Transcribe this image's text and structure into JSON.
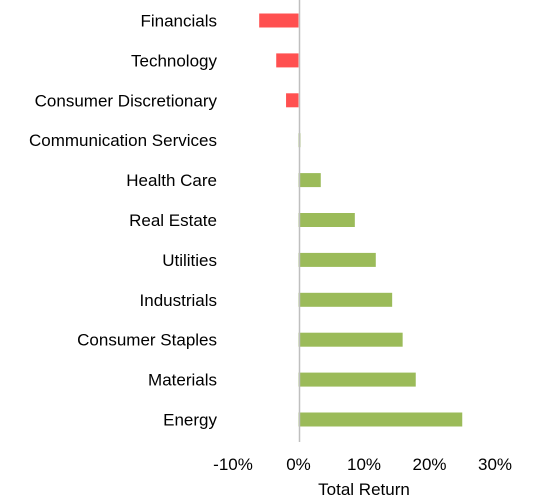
{
  "chart_data": {
    "type": "bar",
    "orientation": "horizontal",
    "categories": [
      "Financials",
      "Technology",
      "Consumer Discretionary",
      "Communication Services",
      "Health Care",
      "Real Estate",
      "Utilities",
      "Industrials",
      "Consumer Staples",
      "Materials",
      "Energy"
    ],
    "values": [
      -6.0,
      -3.4,
      -1.9,
      0.3,
      3.4,
      8.6,
      11.8,
      14.3,
      15.9,
      17.9,
      25.0
    ],
    "xlim": [
      -10,
      30
    ],
    "xticks": [
      -10,
      0,
      10,
      20,
      30
    ],
    "tick_labels": [
      "-10%",
      "0%",
      "10%",
      "20%",
      "30%"
    ],
    "xlabel": "Total Return",
    "ylabel": "",
    "title": "",
    "grid": false,
    "colors": {
      "positive": "#9bbb59",
      "negative": "#ff5050",
      "zero_line": "#bfbfbf"
    }
  }
}
